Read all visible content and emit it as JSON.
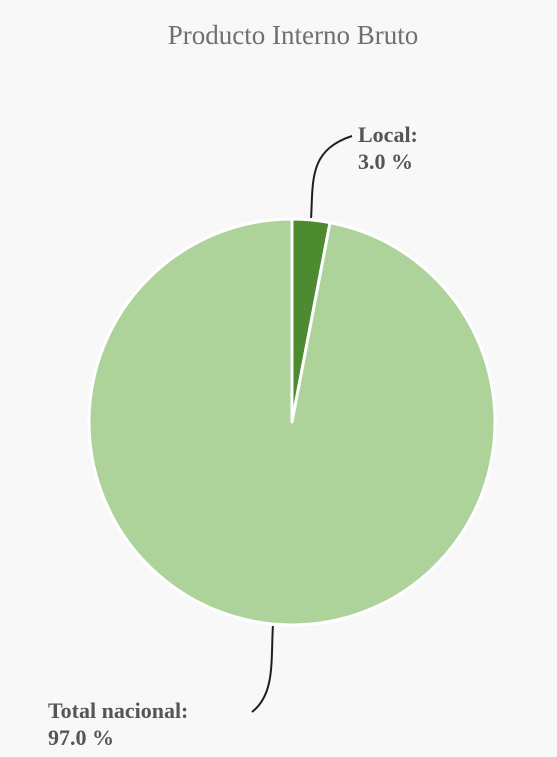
{
  "chart_data": {
    "type": "pie",
    "title": "Producto Interno Bruto",
    "slices": [
      {
        "label": "Local",
        "value": 3.0,
        "display": "3.0 %",
        "color": "#4e8a2f"
      },
      {
        "label": "Total nacional",
        "value": 97.0,
        "display": "97.0 %",
        "color": "#add39a"
      }
    ],
    "start_angle_deg": 0,
    "direction": "clockwise",
    "legend": "none",
    "grid": false
  }
}
